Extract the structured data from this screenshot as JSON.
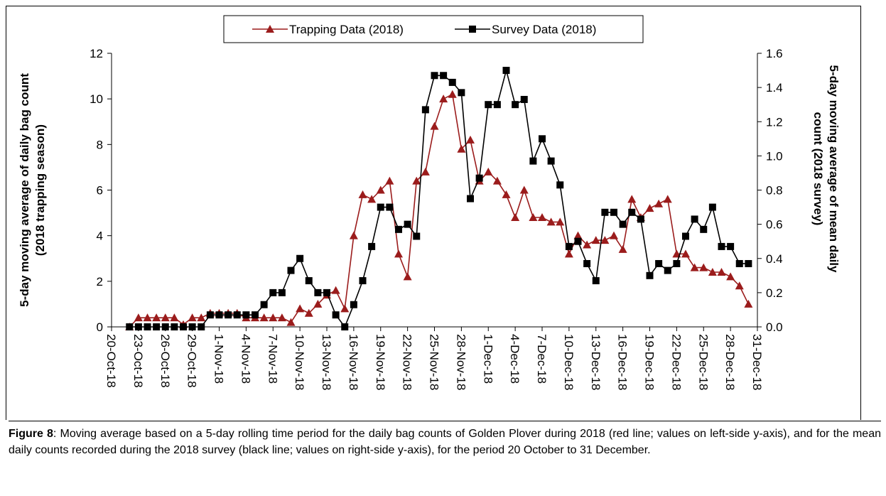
{
  "chart_data": {
    "type": "line",
    "legend": "top",
    "y_label": "5-day moving average of daily bag count (2018 trapping season)",
    "y2_label": "5-day moving average of mean daily count (2018 survey)",
    "x": [
      "2018-10-22",
      "2018-10-23",
      "2018-10-24",
      "2018-10-25",
      "2018-10-26",
      "2018-10-27",
      "2018-10-28",
      "2018-10-29",
      "2018-10-30",
      "2018-10-31",
      "2018-11-01",
      "2018-11-02",
      "2018-11-03",
      "2018-11-04",
      "2018-11-05",
      "2018-11-06",
      "2018-11-07",
      "2018-11-08",
      "2018-11-09",
      "2018-11-10",
      "2018-11-11",
      "2018-11-12",
      "2018-11-13",
      "2018-11-14",
      "2018-11-15",
      "2018-11-16",
      "2018-11-17",
      "2018-11-18",
      "2018-11-19",
      "2018-11-20",
      "2018-11-21",
      "2018-11-22",
      "2018-11-23",
      "2018-11-24",
      "2018-11-25",
      "2018-11-26",
      "2018-11-27",
      "2018-11-28",
      "2018-11-29",
      "2018-11-30",
      "2018-12-01",
      "2018-12-02",
      "2018-12-03",
      "2018-12-04",
      "2018-12-05",
      "2018-12-06",
      "2018-12-07",
      "2018-12-08",
      "2018-12-09",
      "2018-12-10",
      "2018-12-11",
      "2018-12-12",
      "2018-12-13",
      "2018-12-14",
      "2018-12-15",
      "2018-12-16",
      "2018-12-17",
      "2018-12-18",
      "2018-12-19",
      "2018-12-20",
      "2018-12-21",
      "2018-12-22",
      "2018-12-23",
      "2018-12-24",
      "2018-12-25",
      "2018-12-26",
      "2018-12-27",
      "2018-12-28",
      "2018-12-29",
      "2018-12-30"
    ],
    "series": [
      {
        "name": "Trapping Data (2018)",
        "color": "#9b1c1c",
        "marker": "triangle",
        "axis": "y",
        "values": [
          0,
          0.4,
          0.4,
          0.4,
          0.4,
          0.4,
          0.1,
          0.4,
          0.4,
          0.6,
          0.6,
          0.6,
          0.6,
          0.4,
          0.4,
          0.4,
          0.4,
          0.4,
          0.2,
          0.8,
          0.6,
          1.0,
          1.4,
          1.6,
          0.8,
          4.0,
          5.8,
          5.6,
          6.0,
          6.4,
          3.2,
          2.2,
          6.4,
          6.8,
          8.8,
          10.0,
          10.2,
          7.8,
          8.2,
          6.4,
          6.8,
          6.4,
          5.8,
          4.8,
          6.0,
          4.8,
          4.8,
          4.6,
          4.6,
          3.2,
          4.0,
          3.6,
          3.8,
          3.8,
          4.0,
          3.4,
          5.6,
          4.8,
          5.2,
          5.4,
          5.6,
          3.2,
          3.2,
          2.6,
          2.6,
          2.4,
          2.4,
          2.2,
          1.8,
          1.0
        ]
      },
      {
        "name": "Survey Data (2018)",
        "color": "#000000",
        "marker": "square",
        "axis": "y2",
        "values": [
          0,
          0,
          0,
          0,
          0,
          0,
          0,
          0,
          0,
          0.07,
          0.07,
          0.07,
          0.07,
          0.07,
          0.07,
          0.13,
          0.2,
          0.2,
          0.33,
          0.4,
          0.27,
          0.2,
          0.2,
          0.07,
          0,
          0.13,
          0.27,
          0.47,
          0.7,
          0.7,
          0.57,
          0.6,
          0.53,
          1.27,
          1.47,
          1.47,
          1.43,
          1.37,
          0.75,
          0.87,
          1.3,
          1.3,
          1.5,
          1.3,
          1.33,
          0.97,
          1.1,
          0.97,
          0.83,
          0.47,
          0.5,
          0.37,
          0.27,
          0.67,
          0.67,
          0.6,
          0.67,
          0.63,
          0.3,
          0.37,
          0.33,
          0.37,
          0.53,
          0.63,
          0.57,
          0.7,
          0.47,
          0.47,
          0.37,
          0.37
        ]
      }
    ],
    "xlim": [
      "2018-10-20",
      "2018-12-31"
    ],
    "xticks": [
      {
        "value": "2018-10-20",
        "label": "20-Oct-18"
      },
      {
        "value": "2018-10-23",
        "label": "23-Oct-18"
      },
      {
        "value": "2018-10-26",
        "label": "26-Oct-18"
      },
      {
        "value": "2018-10-29",
        "label": "29-Oct-18"
      },
      {
        "value": "2018-11-01",
        "label": "1-Nov-18"
      },
      {
        "value": "2018-11-04",
        "label": "4-Nov-18"
      },
      {
        "value": "2018-11-07",
        "label": "7-Nov-18"
      },
      {
        "value": "2018-11-10",
        "label": "10-Nov-18"
      },
      {
        "value": "2018-11-13",
        "label": "13-Nov-18"
      },
      {
        "value": "2018-11-16",
        "label": "16-Nov-18"
      },
      {
        "value": "2018-11-19",
        "label": "19-Nov-18"
      },
      {
        "value": "2018-11-22",
        "label": "22-Nov-18"
      },
      {
        "value": "2018-11-25",
        "label": "25-Nov-18"
      },
      {
        "value": "2018-11-28",
        "label": "28-Nov-18"
      },
      {
        "value": "2018-12-01",
        "label": "1-Dec-18"
      },
      {
        "value": "2018-12-04",
        "label": "4-Dec-18"
      },
      {
        "value": "2018-12-07",
        "label": "7-Dec-18"
      },
      {
        "value": "2018-12-10",
        "label": "10-Dec-18"
      },
      {
        "value": "2018-12-13",
        "label": "13-Dec-18"
      },
      {
        "value": "2018-12-16",
        "label": "16-Dec-18"
      },
      {
        "value": "2018-12-19",
        "label": "19-Dec-18"
      },
      {
        "value": "2018-12-22",
        "label": "22-Dec-18"
      },
      {
        "value": "2018-12-25",
        "label": "25-Dec-18"
      },
      {
        "value": "2018-12-28",
        "label": "28-Dec-18"
      },
      {
        "value": "2018-12-31",
        "label": "31-Dec-18"
      }
    ],
    "ylim": [
      0,
      12
    ],
    "yticks": [
      0,
      2,
      4,
      6,
      8,
      10,
      12
    ],
    "y2lim": [
      0,
      1.6
    ],
    "y2ticks": [
      {
        "value": 0,
        "label": "0.0"
      },
      0.2,
      0.4,
      0.6,
      0.8,
      {
        "value": 1,
        "label": "1.0"
      },
      1.2,
      1.4,
      1.6
    ]
  },
  "caption": {
    "label": "Figure 8",
    "text": ": Moving average based on a 5-day rolling time period for the daily bag counts of Golden Plover during 2018 (red line; values on left-side y-axis), and for the mean daily counts recorded during the 2018 survey (black line; values on right-side y-axis), for the period 20 October to 31 December."
  }
}
